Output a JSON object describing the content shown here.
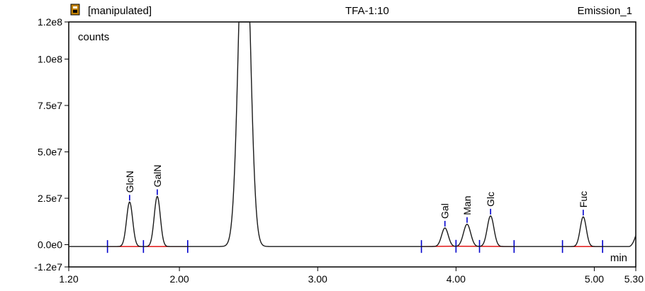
{
  "header": {
    "status": "[manipulated]",
    "sample": "TFA-1:10",
    "channel": "Emission_1"
  },
  "colors": {
    "trace": "#1a1a1a",
    "baseline": "#dd0000",
    "marker": "#0000cc",
    "frame": "#000000",
    "icon": "#c08000"
  },
  "chart_data": {
    "type": "line",
    "title": "",
    "xlabel": "min",
    "ylabel": "counts",
    "xlim": [
      1.2,
      5.3
    ],
    "ylim": [
      -12000000.0,
      120000000.0
    ],
    "xticks": [
      {
        "value": 1.2,
        "label": "1.20"
      },
      {
        "value": 2.0,
        "label": "2.00"
      },
      {
        "value": 3.0,
        "label": "3.00"
      },
      {
        "value": 4.0,
        "label": "4.00"
      },
      {
        "value": 5.0,
        "label": "5.00"
      },
      {
        "value": 5.3,
        "label": "5.30"
      }
    ],
    "yticks": [
      {
        "value": -12000000.0,
        "label": "-1.2e7"
      },
      {
        "value": 0,
        "label": "0.0e0"
      },
      {
        "value": 25000000.0,
        "label": "2.5e7"
      },
      {
        "value": 50000000.0,
        "label": "5.0e7"
      },
      {
        "value": 75000000.0,
        "label": "7.5e7"
      },
      {
        "value": 100000000.0,
        "label": "1.0e8"
      },
      {
        "value": 120000000.0,
        "label": "1.2e8"
      }
    ],
    "baseline_offset": -1000000.0,
    "peaks": [
      {
        "label": "GlcN",
        "rt": 1.64,
        "height": 24000000.0,
        "width": 0.022
      },
      {
        "label": "GalN",
        "rt": 1.84,
        "height": 27000000.0,
        "width": 0.022
      },
      {
        "label": "",
        "rt": 2.47,
        "height": 200000000.0,
        "width": 0.04
      },
      {
        "label": "Gal",
        "rt": 3.92,
        "height": 10000000.0,
        "width": 0.024
      },
      {
        "label": "Man",
        "rt": 4.08,
        "height": 12000000.0,
        "width": 0.026
      },
      {
        "label": "Glc",
        "rt": 4.25,
        "height": 16500000.0,
        "width": 0.024
      },
      {
        "label": "Fuc",
        "rt": 4.92,
        "height": 16000000.0,
        "width": 0.022
      }
    ],
    "integration_segments": [
      [
        1.48,
        1.74
      ],
      [
        1.74,
        2.06
      ],
      [
        3.75,
        4.0
      ],
      [
        4.0,
        4.17
      ],
      [
        4.17,
        4.42
      ],
      [
        4.77,
        5.06
      ]
    ],
    "integration_markers": [
      1.48,
      1.74,
      2.06,
      3.75,
      4.0,
      4.17,
      4.42,
      4.77,
      5.06
    ],
    "tail_rise": {
      "start": 5.25,
      "end": 5.3,
      "value": 6000000.0
    },
    "grid": false,
    "legend": "none"
  }
}
